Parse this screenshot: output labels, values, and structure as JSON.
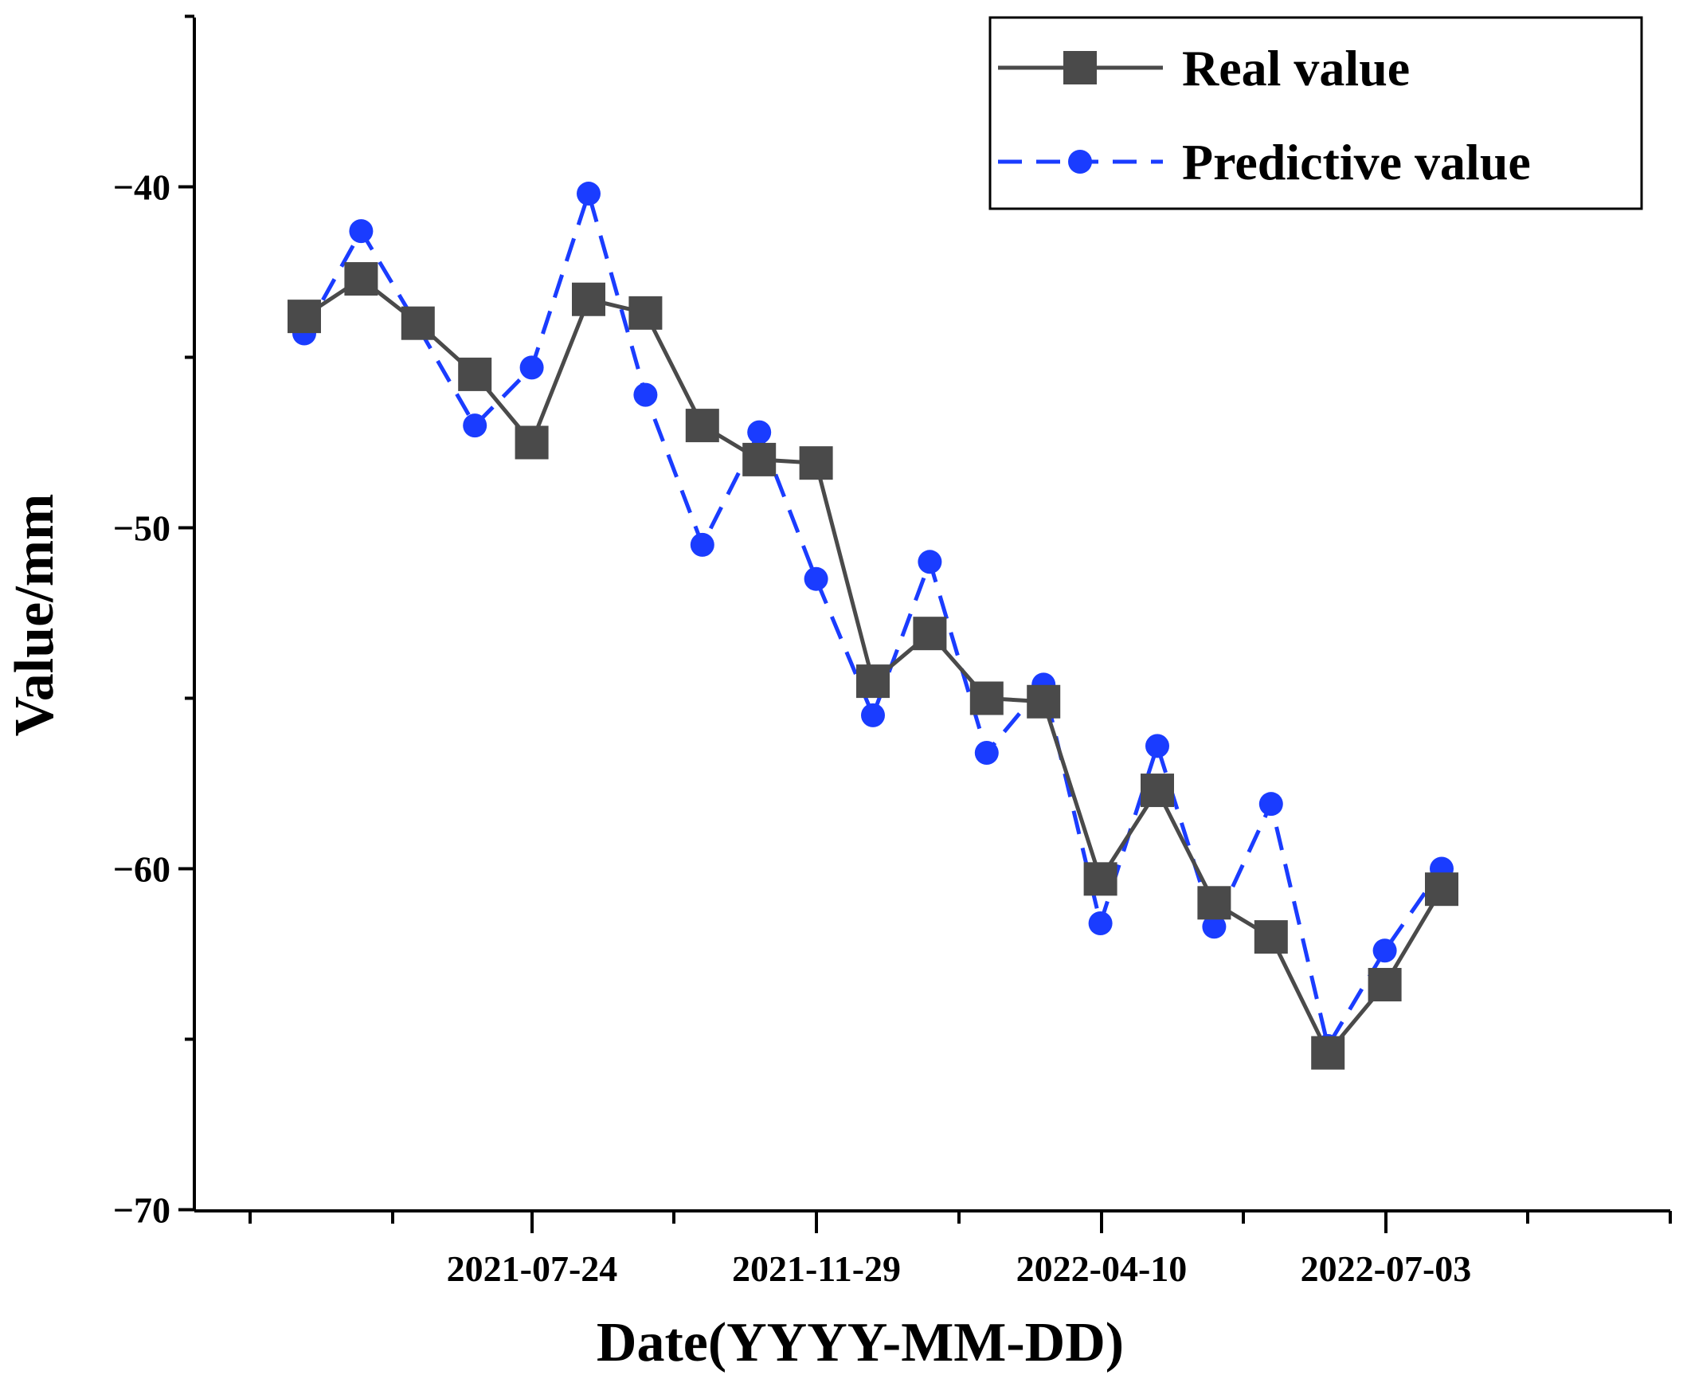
{
  "chart_data": {
    "type": "line",
    "title": "",
    "xlabel": "Date(YYYY-MM-DD)",
    "ylabel": "Value/mm",
    "x_tick_labels": [
      "2021-07-24",
      "2021-11-29",
      "2022-04-10",
      "2022-07-03"
    ],
    "y_ticks": [
      -40,
      -50,
      -60,
      -70
    ],
    "ylim": [
      -70,
      -35
    ],
    "legend_position": "top-right",
    "grid": false,
    "point_count": 21,
    "series": [
      {
        "name": "Real value",
        "color": "#4a4a4a",
        "line_style": "solid",
        "marker": "square",
        "values": [
          -43.8,
          -42.7,
          -44.0,
          -45.5,
          -47.5,
          -43.3,
          -43.7,
          -47.0,
          -48.0,
          -48.1,
          -54.5,
          -53.1,
          -55.0,
          -55.1,
          -60.3,
          -57.7,
          -61.0,
          -62.0,
          -65.4,
          -63.4,
          -60.6
        ]
      },
      {
        "name": "Predictive value",
        "color": "#1a3cff",
        "line_style": "dashed",
        "marker": "circle",
        "values": [
          -44.3,
          -41.3,
          -44.1,
          -47.0,
          -45.3,
          -40.2,
          -46.1,
          -50.5,
          -47.2,
          -51.5,
          -55.5,
          -51.0,
          -56.6,
          -54.6,
          -61.6,
          -56.4,
          -61.7,
          -58.1,
          -65.2,
          -62.4,
          -60.0
        ]
      }
    ]
  }
}
